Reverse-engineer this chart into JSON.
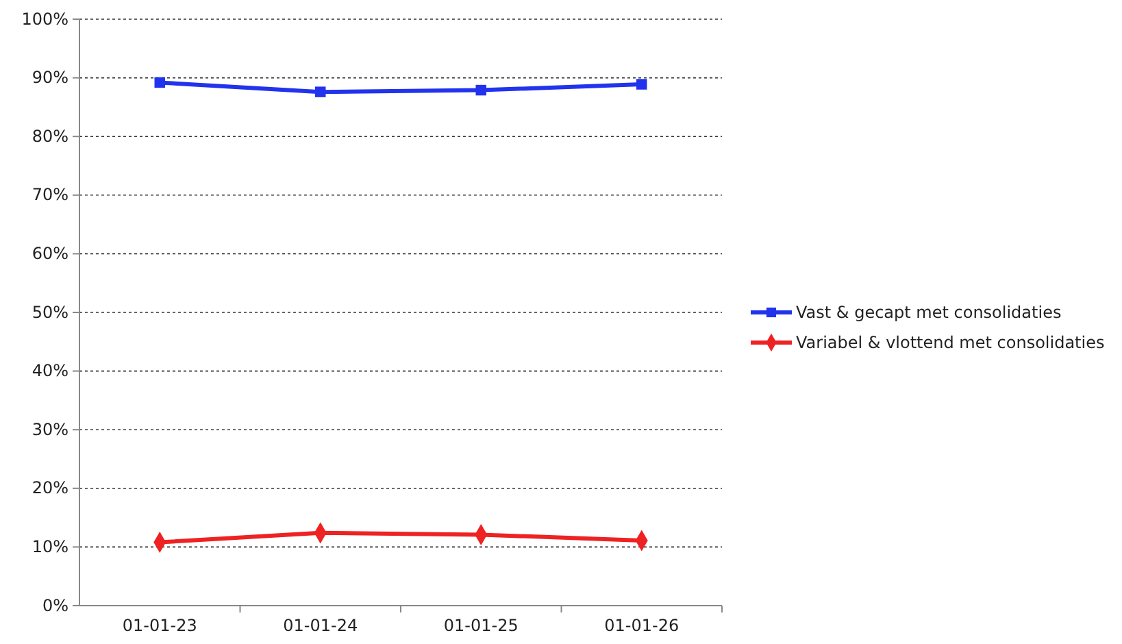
{
  "chart_data": {
    "type": "line",
    "categories": [
      "01-01-23",
      "01-01-24",
      "01-01-25",
      "01-01-26"
    ],
    "series": [
      {
        "name": "Vast & gecapt met consolidaties",
        "color": "#2233ee",
        "marker": "square",
        "values": [
          89.2,
          87.6,
          87.9,
          88.9
        ]
      },
      {
        "name": "Variabel & vlottend met consolidaties",
        "color": "#ee2222",
        "marker": "diamond",
        "values": [
          10.8,
          12.4,
          12.1,
          11.1
        ]
      }
    ],
    "ylim": [
      0,
      100
    ],
    "yticks": [
      {
        "value": 0,
        "label": "0%"
      },
      {
        "value": 10,
        "label": "10%"
      },
      {
        "value": 20,
        "label": "20%"
      },
      {
        "value": 30,
        "label": "30%"
      },
      {
        "value": 40,
        "label": "40%"
      },
      {
        "value": 50,
        "label": "50%"
      },
      {
        "value": 60,
        "label": "60%"
      },
      {
        "value": 70,
        "label": "70%"
      },
      {
        "value": 80,
        "label": "80%"
      },
      {
        "value": 90,
        "label": "90%"
      },
      {
        "value": 100,
        "label": "100%"
      }
    ],
    "grid": "y",
    "legend": "right",
    "line_style": "solid"
  }
}
